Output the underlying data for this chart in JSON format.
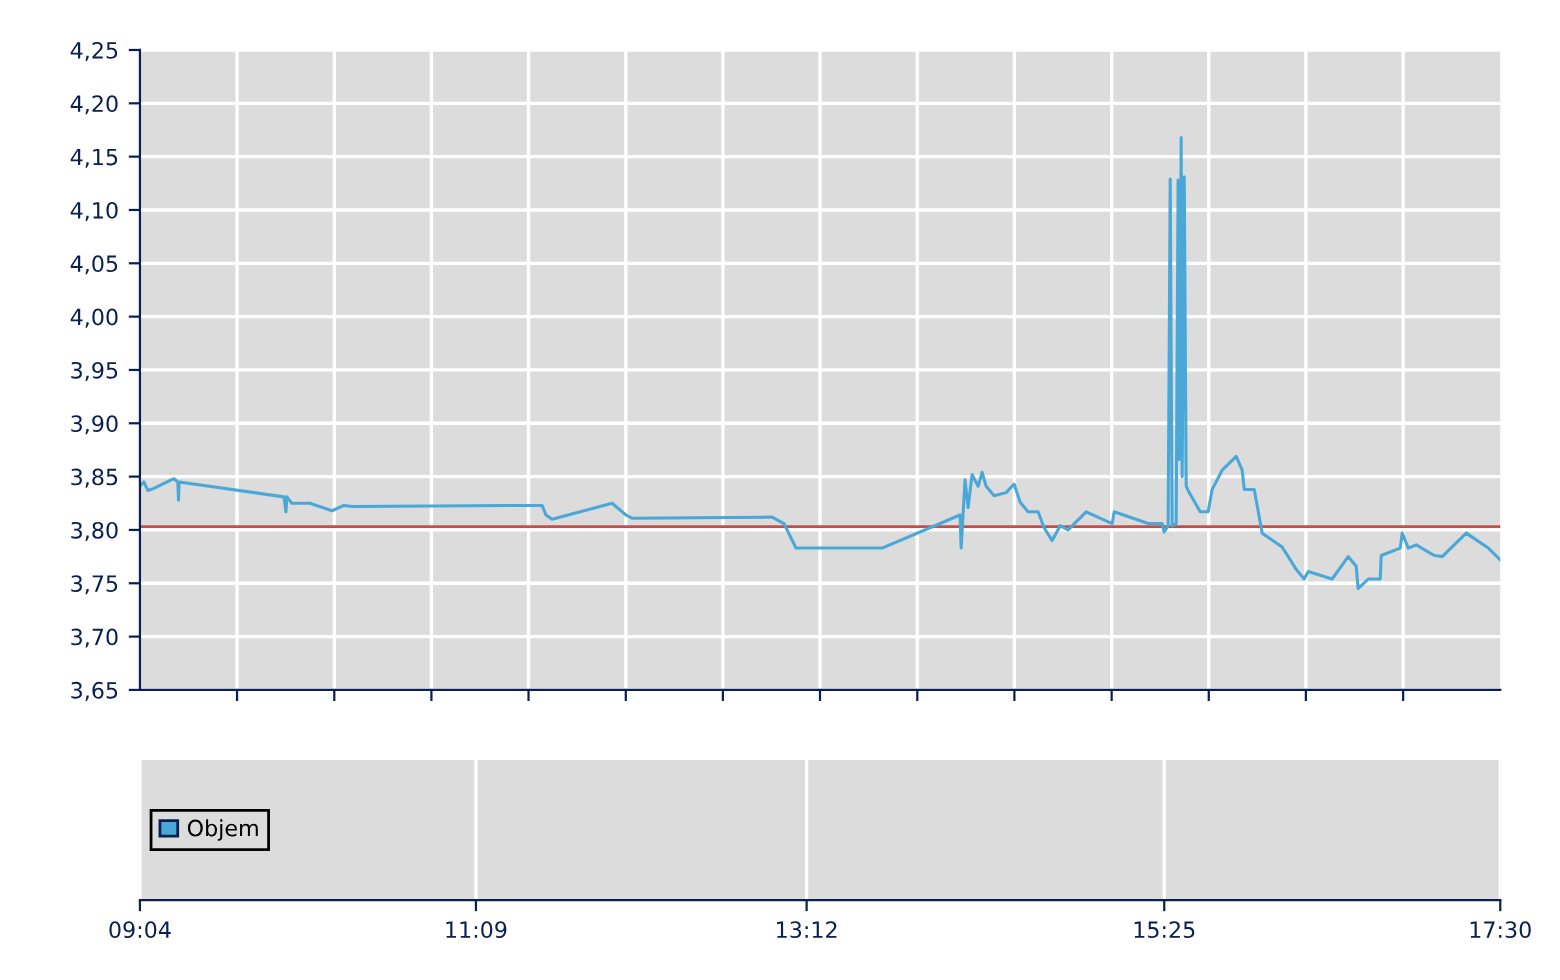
{
  "chart_data": [
    {
      "type": "line",
      "tick_labels": "y",
      "grid": true,
      "legend": false,
      "xlim": [
        9.067,
        17.5
      ],
      "xticks": [
        {
          "value": 9.067,
          "label": "09:04"
        },
        {
          "value": 11.15,
          "label": "11:09"
        },
        {
          "value": 13.2,
          "label": "13:12"
        },
        {
          "value": 15.417,
          "label": "15:25"
        },
        {
          "value": 17.5,
          "label": "17:30"
        },
        {
          "value": 9.669,
          "label": null
        },
        {
          "value": 10.272,
          "label": null
        },
        {
          "value": 10.874,
          "label": null
        },
        {
          "value": 11.476,
          "label": null
        },
        {
          "value": 12.079,
          "label": null
        },
        {
          "value": 12.681,
          "label": null
        },
        {
          "value": 13.283,
          "label": null
        },
        {
          "value": 13.886,
          "label": null
        },
        {
          "value": 14.488,
          "label": null
        },
        {
          "value": 15.091,
          "label": null
        },
        {
          "value": 15.693,
          "label": null
        },
        {
          "value": 16.295,
          "label": null
        },
        {
          "value": 16.898,
          "label": null
        }
      ],
      "ylim": [
        3.65,
        4.25
      ],
      "yticks": [
        {
          "value": 3.65,
          "label": "3,65"
        },
        {
          "value": 3.7,
          "label": "3,70"
        },
        {
          "value": 3.75,
          "label": "3,75"
        },
        {
          "value": 3.8,
          "label": "3,80"
        },
        {
          "value": 3.85,
          "label": "3,85"
        },
        {
          "value": 3.9,
          "label": "3,90"
        },
        {
          "value": 3.95,
          "label": "3,95"
        },
        {
          "value": 4.0,
          "label": "4,00"
        },
        {
          "value": 4.05,
          "label": "4,05"
        },
        {
          "value": 4.1,
          "label": "4,10"
        },
        {
          "value": 4.15,
          "label": "4,15"
        },
        {
          "value": 4.2,
          "label": "4,20"
        },
        {
          "value": 4.25,
          "label": "4,25"
        }
      ],
      "ref_lines": [
        {
          "axis": "y",
          "value": 3.803,
          "color": "#c0504d"
        }
      ],
      "series": [
        {
          "color": "#4aa8d8",
          "x": [
            9.067,
            9.091,
            9.116,
            9.153,
            9.277,
            9.302,
            9.306,
            9.31,
            9.96,
            9.972,
            9.978,
            10.009,
            10.121,
            10.257,
            10.332,
            10.381,
            11.56,
            11.584,
            11.622,
            11.994,
            12.08,
            12.118,
            12.986,
            13.06,
            13.134,
            13.668,
            14.151,
            14.158,
            14.182,
            14.201,
            14.226,
            14.263,
            14.288,
            14.313,
            14.362,
            14.437,
            14.486,
            14.524,
            14.573,
            14.635,
            14.672,
            14.722,
            14.772,
            14.821,
            14.933,
            15.094,
            15.107,
            15.317,
            15.404,
            15.417,
            15.441,
            15.454,
            15.466,
            15.491,
            15.503,
            15.51,
            15.522,
            15.528,
            15.541,
            15.553,
            15.565,
            15.64,
            15.689,
            15.714,
            15.776,
            15.863,
            15.9,
            15.913,
            15.975,
            16.024,
            16.148,
            16.235,
            16.284,
            16.31,
            16.458,
            16.557,
            16.607,
            16.619,
            16.682,
            16.756,
            16.762,
            16.88,
            16.892,
            16.93,
            16.979,
            17.091,
            17.14,
            17.289,
            17.426,
            17.5
          ],
          "values": [
            3.841,
            3.845,
            3.837,
            3.839,
            3.848,
            3.845,
            3.828,
            3.845,
            3.831,
            3.817,
            3.831,
            3.825,
            3.825,
            3.818,
            3.823,
            3.822,
            3.823,
            3.814,
            3.81,
            3.825,
            3.814,
            3.811,
            3.812,
            3.806,
            3.783,
            3.783,
            3.814,
            3.783,
            3.847,
            3.821,
            3.852,
            3.841,
            3.854,
            3.841,
            3.832,
            3.835,
            3.843,
            3.826,
            3.817,
            3.817,
            3.802,
            3.79,
            3.804,
            3.8,
            3.817,
            3.806,
            3.817,
            3.806,
            3.806,
            3.798,
            3.804,
            4.129,
            3.804,
            3.806,
            4.128,
            3.866,
            4.168,
            3.85,
            4.131,
            3.841,
            3.837,
            3.817,
            3.817,
            3.838,
            3.856,
            3.869,
            3.856,
            3.838,
            3.838,
            3.797,
            3.784,
            3.763,
            3.754,
            3.761,
            3.754,
            3.775,
            3.766,
            3.745,
            3.754,
            3.754,
            3.776,
            3.783,
            3.797,
            3.783,
            3.786,
            3.776,
            3.775,
            3.797,
            3.783,
            3.772
          ]
        }
      ]
    },
    {
      "type": "other",
      "legend": "left",
      "series": [
        {
          "name": "Objem",
          "color": "#4aa8d8"
        }
      ]
    }
  ]
}
